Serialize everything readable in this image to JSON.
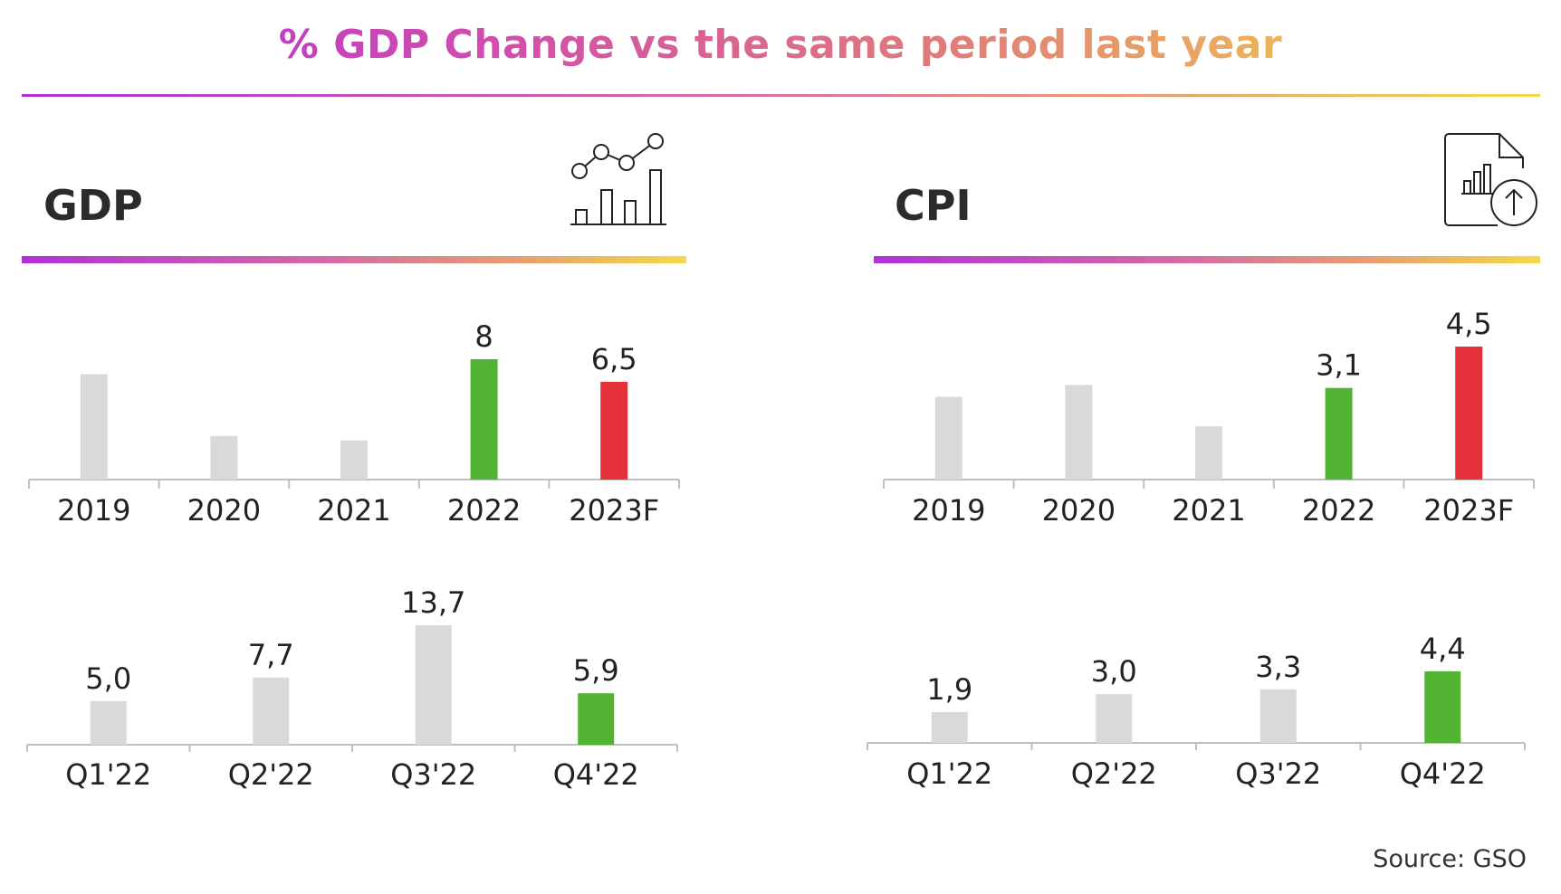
{
  "title": "% GDP Change vs the same period last year",
  "source": "Source: GSO",
  "colors": {
    "gray": "#d9d9d9",
    "green": "#53b433",
    "red": "#e5313a",
    "axis": "#bfbfbf"
  },
  "icons": {
    "gdp": "chart-growth-icon",
    "cpi": "report-upload-icon"
  },
  "chart_data": [
    {
      "id": "gdp-annual",
      "panel": "GDP",
      "type": "bar",
      "title": "GDP",
      "categories": [
        "2019",
        "2020",
        "2021",
        "2022",
        "2023F"
      ],
      "values": [
        7.0,
        2.9,
        2.6,
        8.0,
        6.5
      ],
      "labels": [
        "",
        "",
        "",
        "8",
        "6,5"
      ],
      "bar_colors": [
        "gray",
        "gray",
        "gray",
        "green",
        "red"
      ],
      "ylim": [
        0,
        8
      ]
    },
    {
      "id": "gdp-quarterly",
      "panel": "GDP",
      "type": "bar",
      "categories": [
        "Q1'22",
        "Q2'22",
        "Q3'22",
        "Q4'22"
      ],
      "values": [
        5.0,
        7.7,
        13.7,
        5.9
      ],
      "labels": [
        "5,0",
        "7,7",
        "13,7",
        "5,9"
      ],
      "bar_colors": [
        "gray",
        "gray",
        "gray",
        "green"
      ],
      "ylim": [
        0,
        13.7
      ]
    },
    {
      "id": "cpi-annual",
      "panel": "CPI",
      "type": "bar",
      "title": "CPI",
      "categories": [
        "2019",
        "2020",
        "2021",
        "2022",
        "2023F"
      ],
      "values": [
        2.8,
        3.2,
        1.8,
        3.1,
        4.5
      ],
      "labels": [
        "",
        "",
        "",
        "3,1",
        "4,5"
      ],
      "bar_colors": [
        "gray",
        "gray",
        "gray",
        "green",
        "red"
      ],
      "ylim": [
        0,
        4.5
      ]
    },
    {
      "id": "cpi-quarterly",
      "panel": "CPI",
      "type": "bar",
      "categories": [
        "Q1'22",
        "Q2'22",
        "Q3'22",
        "Q4'22"
      ],
      "values": [
        1.9,
        3.0,
        3.3,
        4.4
      ],
      "labels": [
        "1,9",
        "3,0",
        "3,3",
        "4,4"
      ],
      "bar_colors": [
        "gray",
        "gray",
        "gray",
        "green"
      ],
      "ylim": [
        0,
        4.4
      ]
    }
  ]
}
